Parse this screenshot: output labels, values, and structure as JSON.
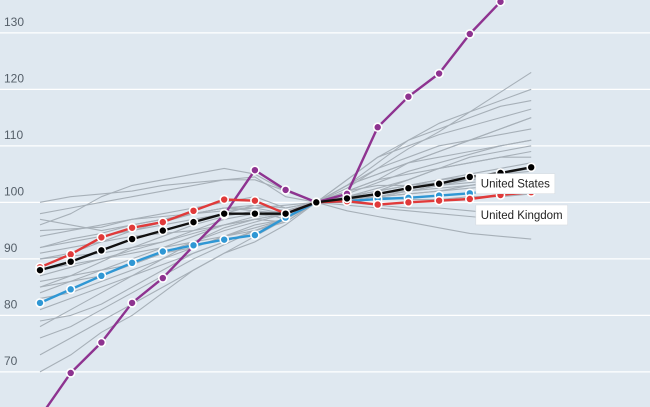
{
  "chart_data": {
    "type": "line",
    "xlim": [
      0,
      17
    ],
    "ylim": [
      64,
      138
    ],
    "y_ticks": [
      70,
      80,
      90,
      100,
      110,
      120,
      130
    ],
    "grid": "horizontal",
    "colors": {
      "background": "#dfe8f0",
      "gridline": "#ffffff",
      "other_countries": "#a7b0b8",
      "united_states": "#111111",
      "united_kingdom": "#e03a3a",
      "blue_series": "#2f97d4",
      "purple_series": "#8e3390"
    },
    "highlighted_series": [
      {
        "key": "united_states",
        "name": "United States",
        "color": "#111111",
        "marker_fill": "#000000",
        "x": [
          0,
          1,
          2,
          3,
          4,
          5,
          6,
          7,
          8,
          9,
          10,
          11,
          12,
          13,
          14,
          15,
          16
        ],
        "y": [
          88,
          89.5,
          91.5,
          93.5,
          95,
          96.5,
          98,
          98,
          98,
          100,
          100.7,
          101.5,
          102.5,
          103.3,
          104.5,
          105.2,
          106.2
        ]
      },
      {
        "key": "united_kingdom",
        "name": "United Kingdom",
        "color": "#e03a3a",
        "marker_fill": "#e03a3a",
        "x": [
          0,
          1,
          2,
          3,
          4,
          5,
          6,
          7,
          8,
          9,
          10,
          11,
          12,
          13,
          14,
          15,
          16
        ],
        "y": [
          88.5,
          90.8,
          93.8,
          95.5,
          96.5,
          98.5,
          100.5,
          100.3,
          98,
          100,
          100.2,
          99.6,
          100,
          100.3,
          100.6,
          101.3,
          101.8
        ]
      },
      {
        "key": "blue_series",
        "name": "",
        "color": "#2f97d4",
        "marker_fill": "#2f97d4",
        "x": [
          0,
          1,
          2,
          3,
          4,
          5,
          6,
          7,
          8,
          9,
          10,
          11,
          12,
          13,
          14,
          15,
          16
        ],
        "y": [
          82.2,
          84.6,
          87,
          89.3,
          91.3,
          92.4,
          93.4,
          94.2,
          97.3,
          100,
          100.2,
          100.6,
          100.8,
          101.2,
          101.6,
          102.2,
          103.3
        ]
      },
      {
        "key": "purple_series",
        "name": "",
        "color": "#8e3390",
        "marker_fill": "#8e3390",
        "x": [
          0,
          1,
          2,
          3,
          4,
          5,
          6,
          7,
          8,
          9,
          10,
          11,
          12,
          13,
          14,
          15
        ],
        "y": [
          62,
          69.8,
          75.2,
          82.2,
          86.6,
          92.3,
          97.8,
          105.7,
          102.2,
          100,
          101.5,
          113.3,
          118.7,
          122.8,
          129.8,
          135.5
        ]
      }
    ],
    "other_series": [
      {
        "x": [
          0,
          1,
          2,
          3,
          4,
          5,
          6,
          7,
          8,
          9,
          10,
          11,
          12,
          13,
          14,
          15,
          16
        ],
        "y": [
          95,
          95.3,
          95.6,
          97,
          98,
          99,
          100,
          101,
          99,
          100,
          101.5,
          103.5,
          105.5,
          107,
          108.5,
          110,
          111
        ]
      },
      {
        "x": [
          0,
          1,
          2,
          3,
          4,
          5,
          6,
          7,
          8,
          9,
          10,
          11,
          12,
          13,
          14,
          15,
          16
        ],
        "y": [
          85,
          87,
          89.5,
          92,
          94,
          96,
          97.5,
          98.5,
          98,
          100,
          102.5,
          106,
          109.5,
          112.5,
          116,
          119.5,
          123
        ]
      },
      {
        "x": [
          0,
          1,
          2,
          3,
          4,
          5,
          6,
          7,
          8,
          9,
          10,
          11,
          12,
          13,
          14,
          15,
          16
        ],
        "y": [
          78,
          81,
          84,
          87,
          90,
          93,
          95.5,
          97,
          96.5,
          100,
          101,
          102,
          103,
          104,
          104.5,
          105,
          105.5
        ]
      },
      {
        "x": [
          0,
          1,
          2,
          3,
          4,
          5,
          6,
          7,
          8,
          9,
          10,
          11,
          12,
          13,
          14,
          15,
          16
        ],
        "y": [
          92,
          93.5,
          94.5,
          96,
          97,
          98,
          99,
          99.5,
          98.5,
          100,
          100.5,
          101,
          101.5,
          102,
          102.5,
          103,
          103.5
        ]
      },
      {
        "x": [
          0,
          1,
          2,
          3,
          4,
          5,
          6,
          7,
          8,
          9,
          10,
          11,
          12,
          13,
          14,
          15,
          16
        ],
        "y": [
          90,
          91,
          93,
          95,
          96.5,
          98,
          99,
          98.5,
          97,
          100,
          98.5,
          97.5,
          96.5,
          95.5,
          94.5,
          94,
          93.5
        ]
      },
      {
        "x": [
          0,
          1,
          2,
          3,
          4,
          5,
          6,
          7,
          8,
          9,
          10,
          11,
          12,
          13,
          14,
          15,
          16
        ],
        "y": [
          73,
          76,
          79,
          82,
          85,
          88,
          91,
          93,
          96,
          100,
          104,
          108,
          110,
          112,
          113.5,
          115,
          116.5
        ]
      },
      {
        "x": [
          0,
          1,
          2,
          3,
          4,
          5,
          6,
          7,
          8,
          9,
          10,
          11,
          12,
          13,
          14,
          15,
          16
        ],
        "y": [
          96,
          98,
          101,
          103,
          104,
          105,
          106,
          105,
          102,
          100,
          100.5,
          101,
          102,
          103,
          103.5,
          104,
          104.5
        ]
      },
      {
        "x": [
          0,
          1,
          2,
          3,
          4,
          5,
          6,
          7,
          8,
          9,
          10,
          11,
          12,
          13,
          14,
          15,
          16
        ],
        "y": [
          70,
          73,
          77,
          80,
          84,
          88,
          91,
          94,
          97,
          100,
          103,
          105,
          107,
          108,
          109,
          110,
          111
        ]
      },
      {
        "x": [
          0,
          1,
          2,
          3,
          4,
          5,
          6,
          7,
          8,
          9,
          10,
          11,
          12,
          13,
          14,
          15,
          16
        ],
        "y": [
          88,
          89,
          90,
          91,
          92,
          93,
          94,
          95.5,
          97,
          100,
          102,
          104,
          105,
          106,
          107,
          108,
          108
        ]
      },
      {
        "x": [
          0,
          1,
          2,
          3,
          4,
          5,
          6,
          7,
          8,
          9,
          10,
          11,
          12,
          13,
          14,
          15,
          16
        ],
        "y": [
          92,
          93,
          94,
          95,
          96,
          97,
          98,
          99.5,
          99,
          100,
          103,
          107,
          111,
          113,
          115,
          117,
          118
        ]
      },
      {
        "x": [
          0,
          1,
          2,
          3,
          4,
          5,
          6,
          7,
          8,
          9,
          10,
          11,
          12,
          13,
          14,
          15,
          16
        ],
        "y": [
          81,
          83,
          85,
          87,
          89,
          91,
          93,
          95,
          97,
          100,
          101,
          101.5,
          102,
          102.5,
          103,
          104,
          105
        ]
      },
      {
        "x": [
          0,
          1,
          2,
          3,
          4,
          5,
          6,
          7,
          8,
          9,
          10,
          11,
          12,
          13,
          14,
          15,
          16
        ],
        "y": [
          100,
          101,
          101.5,
          102,
          103,
          103.5,
          104,
          104,
          102,
          100,
          99.5,
          99,
          98.5,
          98,
          97.5,
          97,
          96.5
        ]
      },
      {
        "x": [
          0,
          1,
          2,
          3,
          4,
          5,
          6,
          7,
          8,
          9,
          10,
          11,
          12,
          13,
          14,
          15,
          16
        ],
        "y": [
          85,
          86,
          87,
          89,
          91,
          93,
          95,
          96.5,
          98,
          100,
          101,
          102.5,
          104,
          106,
          108,
          109,
          110
        ]
      },
      {
        "x": [
          0,
          1,
          2,
          3,
          4,
          5,
          6,
          7,
          8,
          9,
          10,
          11,
          12,
          13,
          14,
          15,
          16
        ],
        "y": [
          76,
          78,
          81,
          84,
          87,
          90,
          92.5,
          95,
          97,
          100,
          101,
          102,
          104,
          106,
          107,
          108,
          109
        ]
      },
      {
        "x": [
          0,
          1,
          2,
          3,
          4,
          5,
          6,
          7,
          8,
          9,
          10,
          11,
          12,
          13,
          14,
          15,
          16
        ],
        "y": [
          94,
          95,
          96,
          97,
          97.5,
          98,
          98.5,
          99,
          99.5,
          100,
          100.5,
          101,
          102,
          103,
          104,
          105,
          106
        ]
      },
      {
        "x": [
          0,
          1,
          2,
          3,
          4,
          5,
          6,
          7,
          8,
          9,
          10,
          11,
          12,
          13,
          14,
          15,
          16
        ],
        "y": [
          90,
          90.5,
          91,
          92,
          93,
          95,
          97,
          98,
          98.5,
          100,
          102,
          103,
          103,
          103.5,
          104,
          104,
          104
        ]
      },
      {
        "x": [
          0,
          1,
          2,
          3,
          4,
          5,
          6,
          7,
          8,
          9,
          10,
          11,
          12,
          13,
          14,
          15,
          16
        ],
        "y": [
          84,
          86,
          88,
          90,
          92,
          94,
          96,
          97,
          98,
          100,
          103,
          106,
          108,
          110,
          111,
          112,
          113
        ]
      },
      {
        "x": [
          0,
          1,
          2,
          3,
          4,
          5,
          6,
          7,
          8,
          9,
          10,
          11,
          12,
          13,
          14,
          15,
          16
        ],
        "y": [
          97,
          96,
          95,
          96,
          97,
          98,
          99,
          99,
          98,
          100,
          101,
          101,
          100.5,
          100.5,
          101,
          101,
          101.5
        ]
      },
      {
        "x": [
          0,
          1,
          2,
          3,
          4,
          5,
          6,
          7,
          8,
          9,
          10,
          11,
          12,
          13,
          14,
          15,
          16
        ],
        "y": [
          79,
          80,
          82,
          85,
          88,
          91,
          93,
          95,
          96.5,
          100,
          102,
          104,
          107,
          109,
          111,
          113,
          115
        ]
      },
      {
        "x": [
          0,
          1,
          2,
          3,
          4,
          5,
          6,
          7,
          8,
          9,
          10,
          11,
          12,
          13,
          14,
          15,
          16
        ],
        "y": [
          91,
          92,
          93,
          94,
          94.5,
          95,
          96,
          97,
          98,
          100,
          100,
          99.5,
          99,
          99,
          98.5,
          98,
          98
        ]
      },
      {
        "x": [
          0,
          1,
          2,
          3,
          4,
          5,
          6,
          7,
          8,
          9,
          10,
          11,
          12,
          13,
          14,
          15,
          16
        ],
        "y": [
          87,
          88.5,
          90,
          91.5,
          93,
          94.5,
          96,
          97.5,
          98,
          100,
          104,
          108,
          111,
          114,
          116,
          118,
          120
        ]
      },
      {
        "x": [
          0,
          1,
          2,
          3,
          4,
          5,
          6,
          7,
          8,
          9,
          10,
          11,
          12,
          13,
          14,
          15,
          16
        ],
        "y": [
          98,
          99,
          100,
          101,
          102,
          103,
          104,
          104.5,
          101,
          100,
          101,
          102,
          103,
          104,
          105,
          106,
          107
        ]
      },
      {
        "x": [
          0,
          1,
          2,
          3,
          4,
          5,
          6,
          7,
          8,
          9,
          10,
          11,
          12,
          13,
          14,
          15,
          16
        ],
        "y": [
          83,
          84,
          86,
          88,
          90,
          92,
          94,
          96,
          97,
          100,
          100.5,
          101,
          101.5,
          102,
          103,
          103.5,
          104
        ]
      },
      {
        "x": [
          0,
          1,
          2,
          3,
          4,
          5,
          6,
          7,
          8,
          9,
          10,
          11,
          12,
          13,
          14,
          15,
          16
        ],
        "y": [
          86,
          87,
          88,
          89,
          91,
          92,
          94,
          95,
          97,
          100,
          103,
          105,
          107,
          109,
          111,
          113,
          115
        ]
      }
    ],
    "callouts": [
      {
        "key": "united_states",
        "label": "United States",
        "x": 14,
        "y": 103.3
      },
      {
        "key": "united_kingdom",
        "label": "United Kingdom",
        "x": 14,
        "y": 100.6
      }
    ]
  }
}
